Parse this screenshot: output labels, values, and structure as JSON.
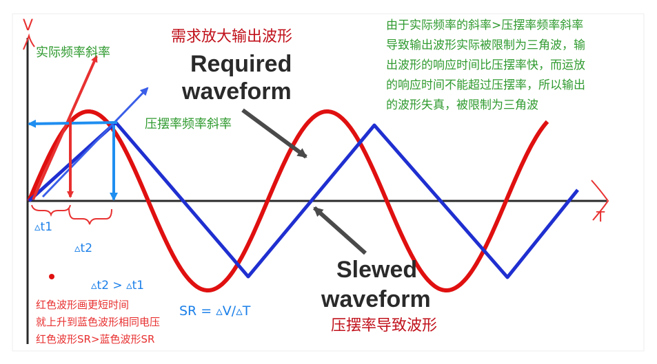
{
  "axes": {
    "y_label": "V",
    "x_label": "T"
  },
  "labels": {
    "red_slope": "实际频率斜率",
    "blue_slope": "压摆率频率斜率",
    "title_cn": "需求放大输出波形",
    "required_1": "Required",
    "required_2": "waveform",
    "slewed_1": "Slewed",
    "slewed_2": "waveform",
    "slewed_cn": "压摆率导致波形",
    "dt1": "▵t1",
    "dt2": "▵t2",
    "dt_compare": "▵t2 > ▵t1",
    "sr_formula": "SR = ▵V/▵T"
  },
  "explanation": [
    "由于实际频率的斜率>压摆率频率斜率",
    "导致输出波形实际被限制为三角波，输",
    "出波形的响应时间比压摆率快，而运放",
    "的响应时间不能超过压摆率，所以输出",
    "的波形失真，被限制为三角波"
  ],
  "red_note": [
    "红色波形画更短时间",
    "就上升到蓝色波形相同电压",
    "红色波形SR>蓝色波形SR"
  ],
  "colors": {
    "sine": "#e01010",
    "triangle": "#1f2fd0",
    "arrow_blue": "#1f8ef0",
    "annotation_red": "#e83030",
    "annotation_blue": "#1a7fe8",
    "annotation_green": "#2f9a2f",
    "title_red": "#c0101a"
  }
}
